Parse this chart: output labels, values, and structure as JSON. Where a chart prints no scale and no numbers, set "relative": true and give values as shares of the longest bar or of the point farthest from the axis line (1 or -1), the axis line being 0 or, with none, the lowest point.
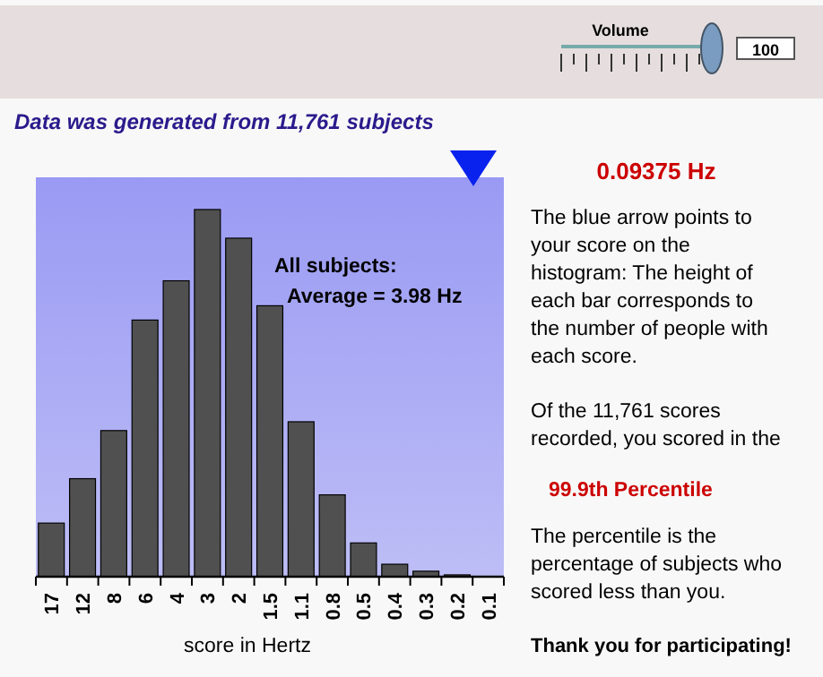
{
  "chart_data": {
    "type": "bar",
    "title": "Data was generated from 11,761 subjects",
    "xlabel": "score in Hertz",
    "relative": true,
    "categories": [
      "17",
      "12",
      "8",
      "6",
      "4",
      "3",
      "2",
      "1.5",
      "1.1",
      "0.8",
      "0.5",
      "0.4",
      "0.3",
      "0.2",
      "0.1"
    ],
    "values": [
      0.146,
      0.267,
      0.398,
      0.699,
      0.806,
      1,
      0.922,
      0.738,
      0.422,
      0.223,
      0.092,
      0.034,
      0.015,
      0.005,
      0
    ],
    "color": "#505050",
    "annotations": [
      "All subjects:\nAverage = 3.98 Hz",
      "0.09375 Hz",
      "The blue arrow points to your score on the histogram: The height of each bar corresponds to the number of people with each score.",
      "Of the 11,761 scores recorded, you scored in the",
      "99.9th Percentile",
      "The percentile is the percentage of subjects who scored less than you.",
      "Thank you for participating!",
      "Volume",
      "100"
    ]
  }
}
